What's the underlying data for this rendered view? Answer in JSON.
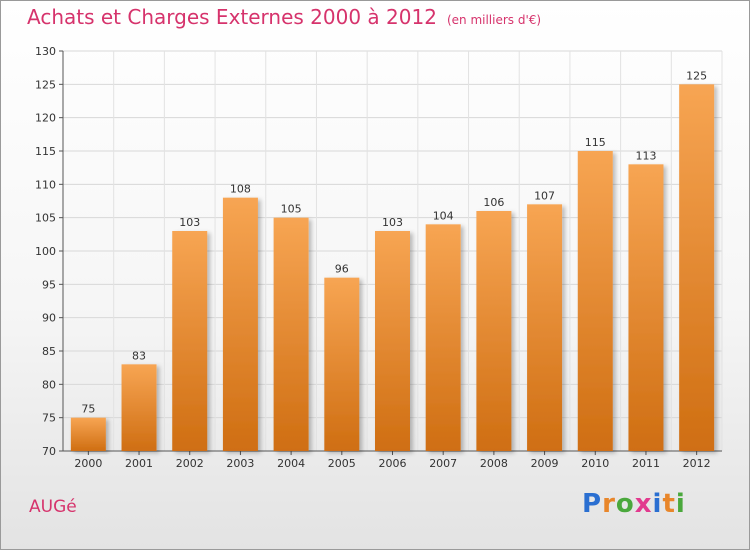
{
  "header": {
    "title": "Achats et Charges Externes 2000 à 2012",
    "subtitle": "(en milliers d'€)"
  },
  "footer": {
    "commune": "AUGé",
    "brand_letters": [
      {
        "ch": "P",
        "color": "#2a6fd1"
      },
      {
        "ch": "r",
        "color": "#e8862a"
      },
      {
        "ch": "o",
        "color": "#4aa83c"
      },
      {
        "ch": "x",
        "color": "#e23a8e"
      },
      {
        "ch": "i",
        "color": "#2a6fd1"
      },
      {
        "ch": "t",
        "color": "#e8862a"
      },
      {
        "ch": "i",
        "color": "#4aa83c"
      }
    ]
  },
  "colors": {
    "bar_top": "#f7a553",
    "bar_bottom": "#cf6e12",
    "title": "#d6336c"
  },
  "chart_data": {
    "type": "bar",
    "categories": [
      "2000",
      "2001",
      "2002",
      "2003",
      "2004",
      "2005",
      "2006",
      "2007",
      "2008",
      "2009",
      "2010",
      "2011",
      "2012"
    ],
    "values": [
      75,
      83,
      103,
      108,
      105,
      96,
      103,
      104,
      106,
      107,
      115,
      113,
      125
    ],
    "ylim": [
      70,
      130
    ],
    "yticks": [
      70,
      75,
      80,
      85,
      90,
      95,
      100,
      105,
      110,
      115,
      120,
      125,
      130
    ],
    "grid": true,
    "title": "Achats et Charges Externes 2000 à 2012",
    "xlabel": "",
    "ylabel": ""
  }
}
